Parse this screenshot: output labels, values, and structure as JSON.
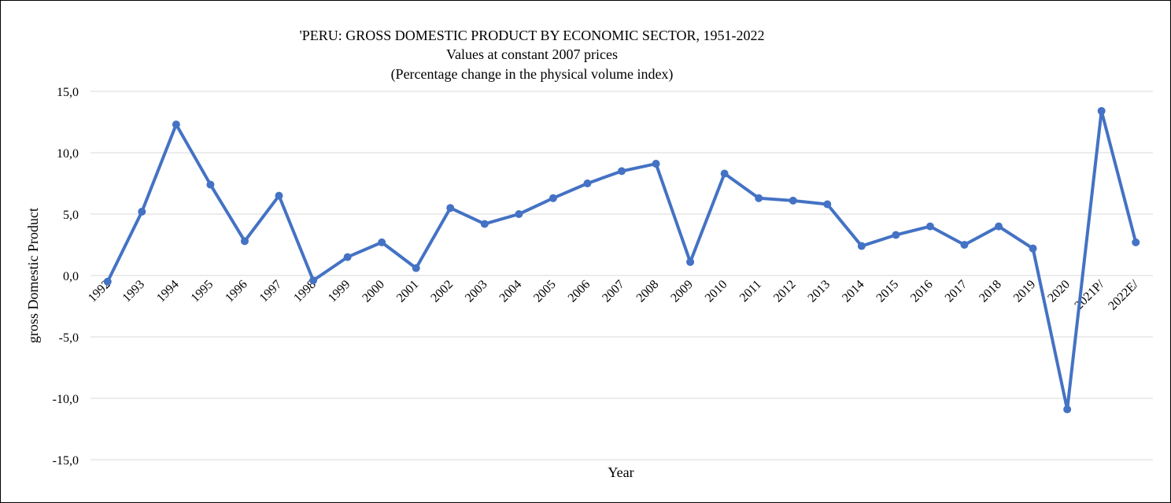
{
  "chart_data": {
    "type": "line",
    "title": [
      "'PERU: GROSS DOMESTIC PRODUCT BY ECONOMIC SECTOR, 1951-2022",
      "Values at constant 2007 prices",
      "(Percentage change in the physical volume index)"
    ],
    "xlabel": "Year",
    "ylabel": "gross Domestic Product",
    "ylim": [
      -15,
      15
    ],
    "yticks": [
      15,
      10,
      5,
      0,
      -5,
      -10,
      -15
    ],
    "ytick_labels": [
      "15,0",
      "10,0",
      "5,0",
      "0,0",
      "-5,0",
      "-10,0",
      "-15,0"
    ],
    "grid": true,
    "line_color": "#4472C4",
    "categories": [
      "1992",
      "1993",
      "1994",
      "1995",
      "1996",
      "1997",
      "1998",
      "1999",
      "2000",
      "2001",
      "2002",
      "2003",
      "2004",
      "2005",
      "2006",
      "2007",
      "2008",
      "2009",
      "2010",
      "2011",
      "2012",
      "2013",
      "2014",
      "2015",
      "2016",
      "2017",
      "2018",
      "2019",
      "2020",
      "2021P/",
      "2022E/"
    ],
    "values": [
      -0.5,
      5.2,
      12.3,
      7.4,
      2.8,
      6.5,
      -0.4,
      1.5,
      2.7,
      0.6,
      5.5,
      4.2,
      5.0,
      6.3,
      7.5,
      8.5,
      9.1,
      1.1,
      8.3,
      6.3,
      6.1,
      5.8,
      2.4,
      3.3,
      4.0,
      2.5,
      4.0,
      2.2,
      -10.9,
      13.4,
      2.7
    ]
  }
}
